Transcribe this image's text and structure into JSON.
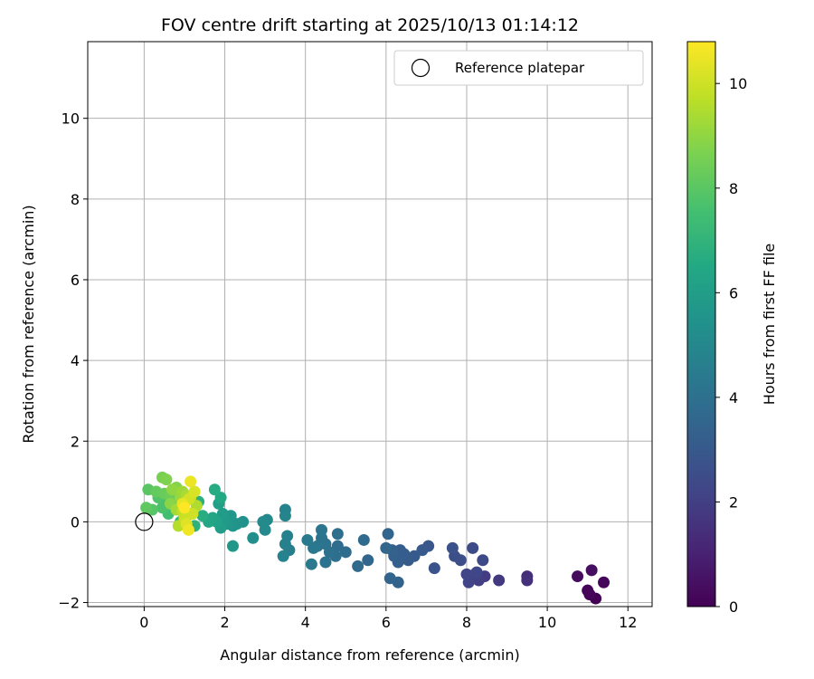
{
  "chart_data": {
    "type": "scatter",
    "title": "FOV centre drift starting at 2025/10/13 01:14:12",
    "xlabel": "Angular distance from reference (arcmin)",
    "ylabel": "Rotation from reference (arcmin)",
    "xlim": [
      -1.4,
      12.6
    ],
    "ylim": [
      -2.1,
      11.9
    ],
    "xticks": [
      0,
      2,
      4,
      6,
      8,
      10,
      12
    ],
    "yticks": [
      -2,
      0,
      2,
      4,
      6,
      8,
      10
    ],
    "grid": true,
    "legend": {
      "location": "top-right",
      "entries": [
        "Reference platepar"
      ]
    },
    "reference": {
      "x": 0,
      "y": 0,
      "label": "Reference platepar"
    },
    "colorbar": {
      "label": "Hours from first FF file",
      "colormap": "viridis",
      "range": [
        0,
        10.8
      ],
      "ticks": [
        0,
        2,
        4,
        6,
        8,
        10
      ]
    },
    "points": [
      {
        "x": 11.2,
        "y": -1.9,
        "c": 0.0
      },
      {
        "x": 11.0,
        "y": -1.7,
        "c": 0.1
      },
      {
        "x": 11.05,
        "y": -1.8,
        "c": 0.15
      },
      {
        "x": 11.4,
        "y": -1.5,
        "c": 0.2
      },
      {
        "x": 10.75,
        "y": -1.35,
        "c": 0.3
      },
      {
        "x": 11.1,
        "y": -1.2,
        "c": 0.4
      },
      {
        "x": 9.5,
        "y": -1.35,
        "c": 1.4
      },
      {
        "x": 9.5,
        "y": -1.45,
        "c": 1.5
      },
      {
        "x": 8.8,
        "y": -1.45,
        "c": 1.8
      },
      {
        "x": 8.45,
        "y": -1.35,
        "c": 1.9
      },
      {
        "x": 8.3,
        "y": -1.45,
        "c": 2.0
      },
      {
        "x": 8.2,
        "y": -1.3,
        "c": 2.1
      },
      {
        "x": 8.05,
        "y": -1.5,
        "c": 2.2
      },
      {
        "x": 8.0,
        "y": -1.3,
        "c": 2.25
      },
      {
        "x": 8.25,
        "y": -1.25,
        "c": 2.3
      },
      {
        "x": 8.4,
        "y": -0.95,
        "c": 2.4
      },
      {
        "x": 8.15,
        "y": -0.65,
        "c": 2.5
      },
      {
        "x": 7.85,
        "y": -0.95,
        "c": 2.55
      },
      {
        "x": 7.7,
        "y": -0.85,
        "c": 2.6
      },
      {
        "x": 7.65,
        "y": -0.65,
        "c": 2.7
      },
      {
        "x": 7.2,
        "y": -1.15,
        "c": 2.8
      },
      {
        "x": 7.05,
        "y": -0.6,
        "c": 2.9
      },
      {
        "x": 6.9,
        "y": -0.7,
        "c": 3.0
      },
      {
        "x": 6.7,
        "y": -0.85,
        "c": 3.05
      },
      {
        "x": 6.55,
        "y": -0.95,
        "c": 3.1
      },
      {
        "x": 6.45,
        "y": -0.8,
        "c": 3.15
      },
      {
        "x": 6.35,
        "y": -0.7,
        "c": 3.2
      },
      {
        "x": 6.3,
        "y": -1.0,
        "c": 3.25
      },
      {
        "x": 6.2,
        "y": -0.85,
        "c": 3.3
      },
      {
        "x": 6.15,
        "y": -0.7,
        "c": 3.35
      },
      {
        "x": 6.3,
        "y": -1.5,
        "c": 3.4
      },
      {
        "x": 6.1,
        "y": -1.4,
        "c": 3.45
      },
      {
        "x": 6.05,
        "y": -0.3,
        "c": 3.5
      },
      {
        "x": 6.0,
        "y": -0.65,
        "c": 3.55
      },
      {
        "x": 5.55,
        "y": -0.95,
        "c": 3.6
      },
      {
        "x": 5.45,
        "y": -0.45,
        "c": 3.7
      },
      {
        "x": 5.3,
        "y": -1.1,
        "c": 3.75
      },
      {
        "x": 5.0,
        "y": -0.75,
        "c": 3.8
      },
      {
        "x": 4.8,
        "y": -0.6,
        "c": 3.85
      },
      {
        "x": 4.75,
        "y": -0.85,
        "c": 3.9
      },
      {
        "x": 4.8,
        "y": -0.3,
        "c": 3.95
      },
      {
        "x": 4.6,
        "y": -0.75,
        "c": 4.0
      },
      {
        "x": 4.5,
        "y": -1.0,
        "c": 4.05
      },
      {
        "x": 4.5,
        "y": -0.55,
        "c": 4.1
      },
      {
        "x": 4.4,
        "y": -0.4,
        "c": 4.15
      },
      {
        "x": 4.4,
        "y": -0.2,
        "c": 4.2
      },
      {
        "x": 4.3,
        "y": -0.6,
        "c": 4.25
      },
      {
        "x": 4.2,
        "y": -0.65,
        "c": 4.3
      },
      {
        "x": 4.15,
        "y": -1.05,
        "c": 4.35
      },
      {
        "x": 4.05,
        "y": -0.45,
        "c": 4.4
      },
      {
        "x": 3.6,
        "y": -0.7,
        "c": 4.6
      },
      {
        "x": 3.55,
        "y": -0.35,
        "c": 4.65
      },
      {
        "x": 3.5,
        "y": -0.55,
        "c": 4.7
      },
      {
        "x": 3.45,
        "y": -0.85,
        "c": 4.75
      },
      {
        "x": 3.5,
        "y": 0.3,
        "c": 4.8
      },
      {
        "x": 3.5,
        "y": 0.15,
        "c": 4.85
      },
      {
        "x": 3.05,
        "y": 0.05,
        "c": 5.0
      },
      {
        "x": 3.0,
        "y": -0.2,
        "c": 5.1
      },
      {
        "x": 2.95,
        "y": 0.0,
        "c": 5.15
      },
      {
        "x": 2.7,
        "y": -0.4,
        "c": 5.3
      },
      {
        "x": 2.45,
        "y": 0.0,
        "c": 5.4
      },
      {
        "x": 2.3,
        "y": -0.05,
        "c": 5.5
      },
      {
        "x": 2.2,
        "y": -0.1,
        "c": 5.6
      },
      {
        "x": 2.15,
        "y": 0.15,
        "c": 5.65
      },
      {
        "x": 2.2,
        "y": -0.6,
        "c": 5.7
      },
      {
        "x": 2.05,
        "y": -0.05,
        "c": 5.75
      },
      {
        "x": 2.0,
        "y": 0.05,
        "c": 5.8
      },
      {
        "x": 1.95,
        "y": 0.2,
        "c": 5.9
      },
      {
        "x": 1.9,
        "y": -0.15,
        "c": 6.0
      },
      {
        "x": 1.85,
        "y": 0.45,
        "c": 6.1
      },
      {
        "x": 1.8,
        "y": 0.0,
        "c": 6.2
      },
      {
        "x": 1.7,
        "y": 0.1,
        "c": 6.3
      },
      {
        "x": 1.6,
        "y": 0.0,
        "c": 6.4
      },
      {
        "x": 1.9,
        "y": 0.6,
        "c": 6.5
      },
      {
        "x": 1.75,
        "y": 0.8,
        "c": 6.6
      },
      {
        "x": 1.45,
        "y": 0.15,
        "c": 6.7
      },
      {
        "x": 1.35,
        "y": 0.5,
        "c": 6.8
      },
      {
        "x": 1.25,
        "y": -0.1,
        "c": 6.9
      },
      {
        "x": 1.15,
        "y": 0.2,
        "c": 7.0
      },
      {
        "x": 1.0,
        "y": 0.3,
        "c": 7.1
      },
      {
        "x": 0.9,
        "y": 0.0,
        "c": 7.2
      },
      {
        "x": 0.85,
        "y": 0.55,
        "c": 7.3
      },
      {
        "x": 0.75,
        "y": 0.35,
        "c": 7.4
      },
      {
        "x": 0.6,
        "y": 0.2,
        "c": 7.5
      },
      {
        "x": 0.55,
        "y": 0.5,
        "c": 7.6
      },
      {
        "x": 0.45,
        "y": 0.35,
        "c": 7.7
      },
      {
        "x": 0.35,
        "y": 0.6,
        "c": 7.8
      },
      {
        "x": 0.2,
        "y": 0.3,
        "c": 7.9
      },
      {
        "x": 0.1,
        "y": 0.8,
        "c": 8.0
      },
      {
        "x": 0.05,
        "y": 0.35,
        "c": 8.1
      },
      {
        "x": 0.3,
        "y": 0.75,
        "c": 8.2
      },
      {
        "x": 0.5,
        "y": 0.7,
        "c": 8.3
      },
      {
        "x": 0.65,
        "y": 0.65,
        "c": 8.4
      },
      {
        "x": 0.45,
        "y": 1.1,
        "c": 8.6
      },
      {
        "x": 0.55,
        "y": 1.05,
        "c": 8.7
      },
      {
        "x": 0.8,
        "y": 0.85,
        "c": 8.8
      },
      {
        "x": 0.65,
        "y": 0.45,
        "c": 8.9
      },
      {
        "x": 0.7,
        "y": 0.8,
        "c": 9.0
      },
      {
        "x": 0.9,
        "y": 0.6,
        "c": 9.1
      },
      {
        "x": 0.95,
        "y": 0.75,
        "c": 9.2
      },
      {
        "x": 0.8,
        "y": 0.3,
        "c": 9.3
      },
      {
        "x": 1.05,
        "y": 0.65,
        "c": 9.4
      },
      {
        "x": 1.3,
        "y": 0.4,
        "c": 9.5
      },
      {
        "x": 0.85,
        "y": -0.1,
        "c": 9.6
      },
      {
        "x": 0.95,
        "y": 0.25,
        "c": 9.7
      },
      {
        "x": 1.15,
        "y": 0.6,
        "c": 9.8
      },
      {
        "x": 1.0,
        "y": 0.1,
        "c": 9.9
      },
      {
        "x": 1.2,
        "y": 0.2,
        "c": 10.0
      },
      {
        "x": 1.1,
        "y": 0.55,
        "c": 10.1
      },
      {
        "x": 1.25,
        "y": 0.75,
        "c": 10.2
      },
      {
        "x": 1.05,
        "y": -0.05,
        "c": 10.3
      },
      {
        "x": 0.95,
        "y": 0.45,
        "c": 10.4
      },
      {
        "x": 1.15,
        "y": 1.0,
        "c": 10.5
      },
      {
        "x": 1.1,
        "y": -0.2,
        "c": 10.6
      },
      {
        "x": 1.0,
        "y": 0.35,
        "c": 10.8
      }
    ]
  }
}
